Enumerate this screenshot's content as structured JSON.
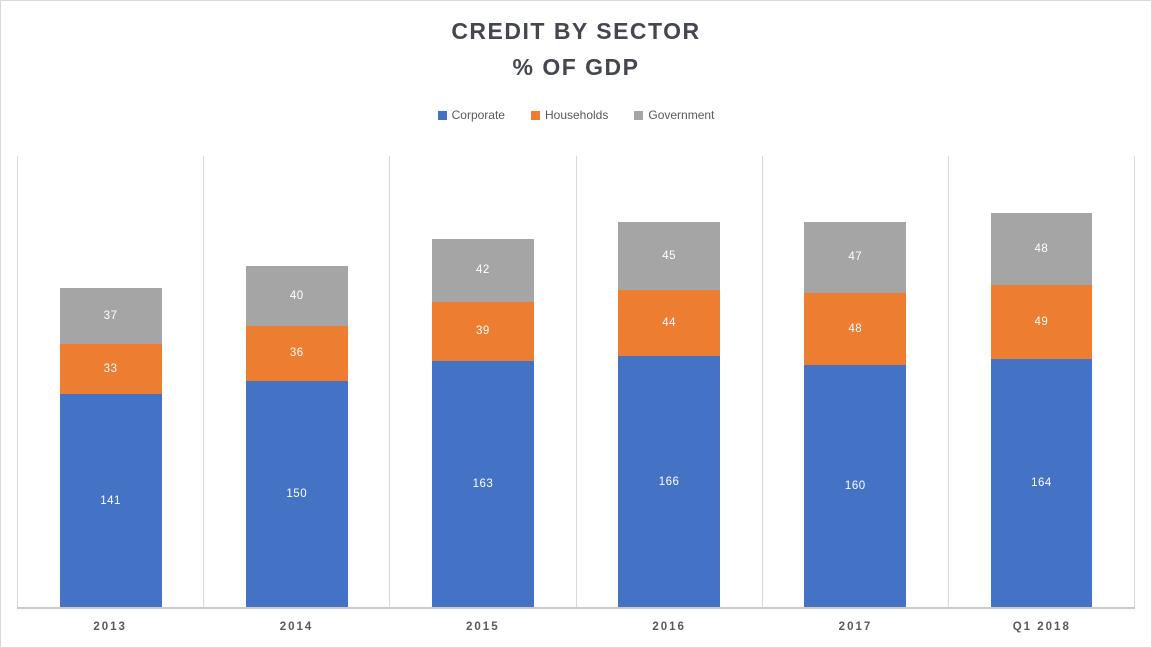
{
  "title": {
    "line1": "CREDIT BY SECTOR",
    "line2": "% OF GDP"
  },
  "colors": {
    "corporate": "#4472C4",
    "households": "#ED7D31",
    "government": "#A5A5A5",
    "gridline": "#D9D9D9",
    "axis_line": "#C9CACB",
    "title_text": "#44474F",
    "label_text": "#595959",
    "data_label_text": "#FFFFFF"
  },
  "chart_data": {
    "type": "bar",
    "stacked": true,
    "title": "CREDIT BY SECTOR % OF GDP",
    "xlabel": "",
    "ylabel": "",
    "ylim": [
      0,
      300
    ],
    "grid": "vertical-category-separators",
    "legend_position": "top-center",
    "categories": [
      "2013",
      "2014",
      "2015",
      "2016",
      "2017",
      "Q1 2018"
    ],
    "series": [
      {
        "name": "Corporate",
        "color": "#4472C4",
        "values": [
          141,
          150,
          163,
          166,
          160,
          164
        ]
      },
      {
        "name": "Households",
        "color": "#ED7D31",
        "values": [
          33,
          36,
          39,
          44,
          48,
          49
        ]
      },
      {
        "name": "Government",
        "color": "#A5A5A5",
        "values": [
          37,
          40,
          42,
          45,
          47,
          48
        ]
      }
    ],
    "totals": [
      211,
      226,
      244,
      255,
      255,
      261
    ]
  }
}
